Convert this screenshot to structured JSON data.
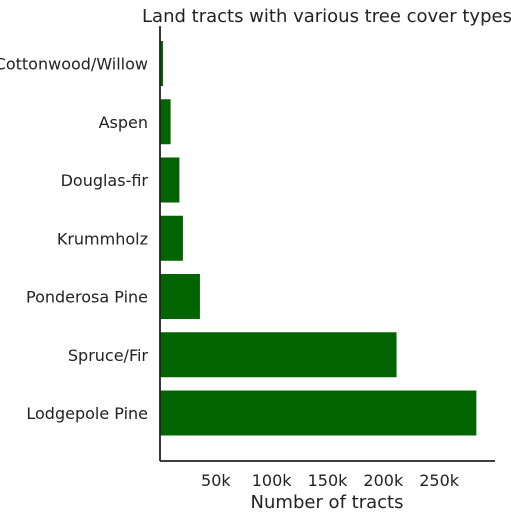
{
  "chart_data": {
    "type": "bar",
    "orientation": "horizontal",
    "title": "Land tracts with various tree cover types",
    "xlabel": "Number of tracts",
    "ylabel": "",
    "categories": [
      "Cottonwood/Willow",
      "Aspen",
      "Douglas-fir",
      "Krummholz",
      "Ponderosa Pine",
      "Spruce/Fir",
      "Lodgepole Pine"
    ],
    "values": [
      2747,
      9493,
      17367,
      20510,
      35754,
      211840,
      283301
    ],
    "xlim": [
      0,
      300000
    ],
    "xticks": [
      50000,
      100000,
      150000,
      200000,
      250000
    ],
    "xtick_labels": [
      "50k",
      "100k",
      "150k",
      "200k",
      "250k"
    ],
    "bar_color": "#006400",
    "grid": false
  }
}
